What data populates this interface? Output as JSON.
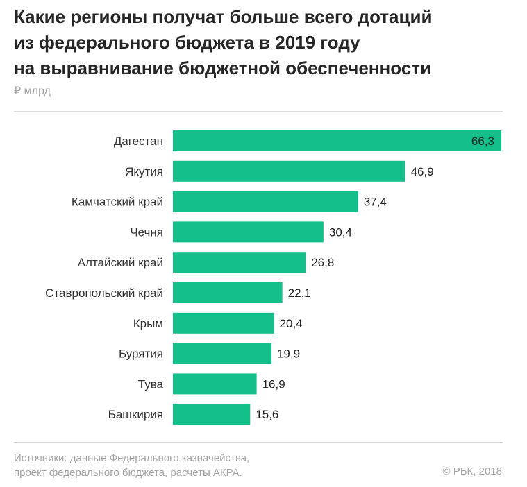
{
  "header": {
    "title_lines": [
      "Какие регионы получат больше всего дотаций",
      "из федерального бюджета в 2019 году",
      "на выравнивание бюджетной обеспеченности"
    ],
    "unit": "₽ млрд"
  },
  "chart_data": {
    "type": "bar",
    "orientation": "horizontal",
    "title": "Какие регионы получат больше всего дотаций из федерального бюджета в 2019 году на выравнивание бюджетной обеспеченности",
    "unit": "₽ млрд",
    "categories": [
      "Дагестан",
      "Якутия",
      "Камчатский край",
      "Чечня",
      "Алтайский край",
      "Ставропольский край",
      "Крым",
      "Бурятия",
      "Тува",
      "Башкирия"
    ],
    "values": [
      66.3,
      46.9,
      37.4,
      30.4,
      26.8,
      22.1,
      20.4,
      19.9,
      16.9,
      15.6
    ],
    "value_labels": [
      "66,3",
      "46,9",
      "37,4",
      "30,4",
      "26,8",
      "22,1",
      "20,4",
      "19,9",
      "16,9",
      "15,6"
    ],
    "xlim": [
      0,
      66.3
    ],
    "grid": false,
    "color": "#14bf8a"
  },
  "footer": {
    "source_lines": [
      "Источники: данные Федерального казначейства,",
      "проект федерального бюджета, расчеты АКРА."
    ],
    "copyright": "© РБК, 2018"
  },
  "colors": {
    "bar": "#14bf8a",
    "title": "#262626",
    "muted": "#a6a6a6",
    "rule": "#d9d9d9"
  }
}
